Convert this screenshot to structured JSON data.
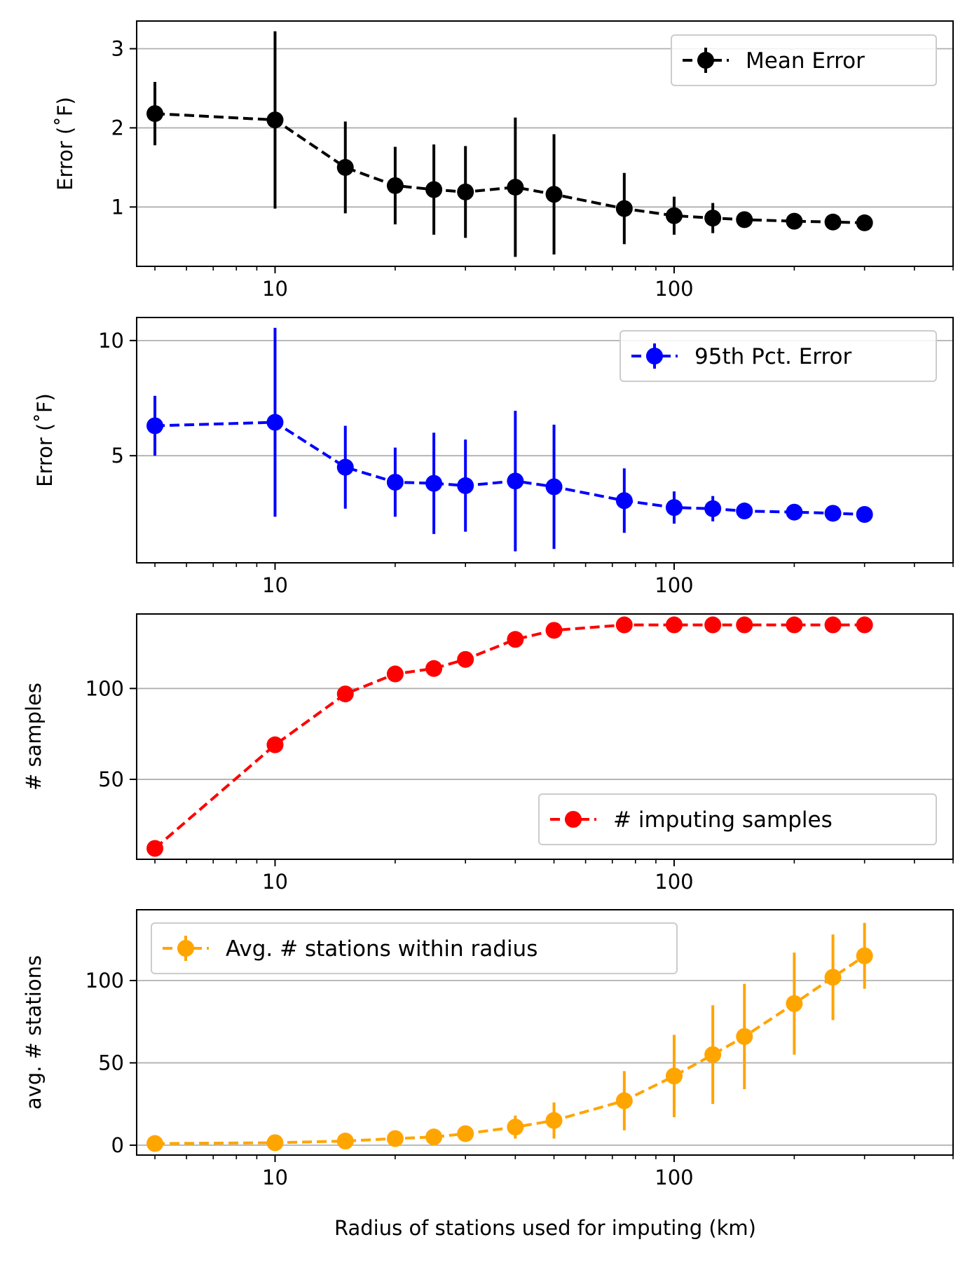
{
  "figure": {
    "xlabel": "Radius of stations used for imputing (km)",
    "x_scale": "log",
    "xlim": [
      4.5,
      500
    ],
    "x_tick_labels": [
      "10",
      "100"
    ],
    "shared_x": [
      5,
      10,
      15,
      20,
      25,
      30,
      40,
      50,
      75,
      100,
      125,
      150,
      200,
      250,
      300
    ]
  },
  "chart_data": [
    {
      "type": "line",
      "style": "dashed, circle markers, vertical error bars",
      "ylabel": "Error (˚F)",
      "ylim": [
        0.25,
        3.35
      ],
      "yticks": [
        1,
        2,
        3
      ],
      "grid": "horizontal",
      "legend_position": "top-right",
      "series": [
        {
          "name": "Mean Error",
          "color": "#000000",
          "x": [
            5,
            10,
            15,
            20,
            25,
            30,
            40,
            50,
            75,
            100,
            125,
            150,
            200,
            250,
            300
          ],
          "y": [
            2.18,
            2.1,
            1.5,
            1.27,
            1.22,
            1.19,
            1.25,
            1.16,
            0.98,
            0.89,
            0.86,
            0.84,
            0.82,
            0.81,
            0.8
          ],
          "err": [
            0.4,
            1.12,
            0.58,
            0.49,
            0.57,
            0.58,
            0.88,
            0.76,
            0.45,
            0.24,
            0.19,
            0.0,
            0.0,
            0.0,
            0.0
          ]
        }
      ]
    },
    {
      "type": "line",
      "style": "dashed, circle markers, vertical error bars",
      "ylabel": "Error (˚F)",
      "ylim": [
        0.35,
        11.0
      ],
      "yticks": [
        5,
        10
      ],
      "grid": "horizontal",
      "legend_position": "top-right",
      "series": [
        {
          "name": "95th Pct. Error",
          "color": "#0000ff",
          "x": [
            5,
            10,
            15,
            20,
            25,
            30,
            40,
            50,
            75,
            100,
            125,
            150,
            200,
            250,
            300
          ],
          "y": [
            6.3,
            6.45,
            4.5,
            3.85,
            3.8,
            3.7,
            3.9,
            3.65,
            3.05,
            2.75,
            2.7,
            2.6,
            2.55,
            2.5,
            2.45
          ],
          "err": [
            1.3,
            4.1,
            1.8,
            1.5,
            2.2,
            2.0,
            3.05,
            2.7,
            1.4,
            0.7,
            0.55,
            0.0,
            0.0,
            0.0,
            0.0
          ]
        }
      ]
    },
    {
      "type": "line",
      "style": "dashed, circle markers",
      "ylabel": "# samples",
      "ylim": [
        6,
        141
      ],
      "yticks": [
        50,
        100
      ],
      "grid": "horizontal",
      "legend_position": "lower-right",
      "series": [
        {
          "name": "# imputing samples",
          "color": "#ff0000",
          "x": [
            5,
            10,
            15,
            20,
            25,
            30,
            40,
            50,
            75,
            100,
            125,
            150,
            200,
            250,
            300
          ],
          "y": [
            12,
            69,
            97,
            108,
            111,
            116,
            127,
            132,
            135,
            135,
            135,
            135,
            135,
            135,
            135
          ]
        }
      ]
    },
    {
      "type": "line",
      "style": "dashed, circle markers, vertical error bars",
      "ylabel": "avg. # stations",
      "ylim": [
        -6,
        143
      ],
      "yticks": [
        0,
        50,
        100
      ],
      "grid": "horizontal",
      "legend_position": "top-left",
      "series": [
        {
          "name": "Avg. # stations within radius",
          "color": "#ffa500",
          "x": [
            5,
            10,
            15,
            20,
            25,
            30,
            40,
            50,
            75,
            100,
            125,
            150,
            200,
            250,
            300
          ],
          "y": [
            1,
            1.5,
            2.5,
            4,
            5,
            7,
            11,
            15,
            27,
            42,
            55,
            66,
            86,
            102,
            115
          ],
          "err": [
            0,
            0,
            0,
            0,
            0,
            0,
            7,
            11,
            18,
            25,
            30,
            32,
            31,
            26,
            20
          ]
        }
      ]
    }
  ]
}
